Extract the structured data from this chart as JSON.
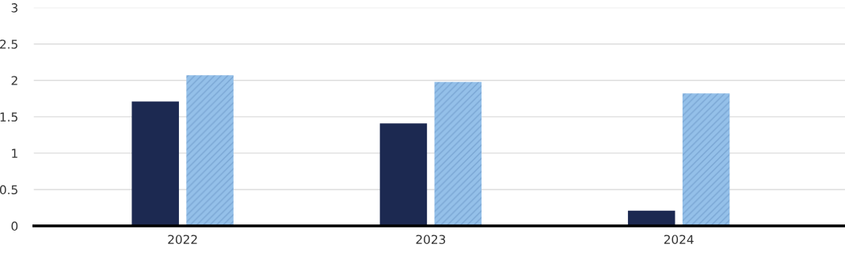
{
  "chart_data": {
    "type": "bar",
    "categories": [
      "2022",
      "2023",
      "2024"
    ],
    "series": [
      {
        "color": "#1c2951",
        "values": [
          1.71,
          1.41,
          0.21
        ]
      },
      {
        "color": "#94c0e9",
        "values": [
          2.07,
          1.98,
          1.82
        ]
      }
    ],
    "ylim": [
      0,
      3
    ],
    "yticks": [
      0,
      0.5,
      1,
      1.5,
      2,
      2.5,
      3
    ],
    "grid": "y",
    "legend": false
  }
}
